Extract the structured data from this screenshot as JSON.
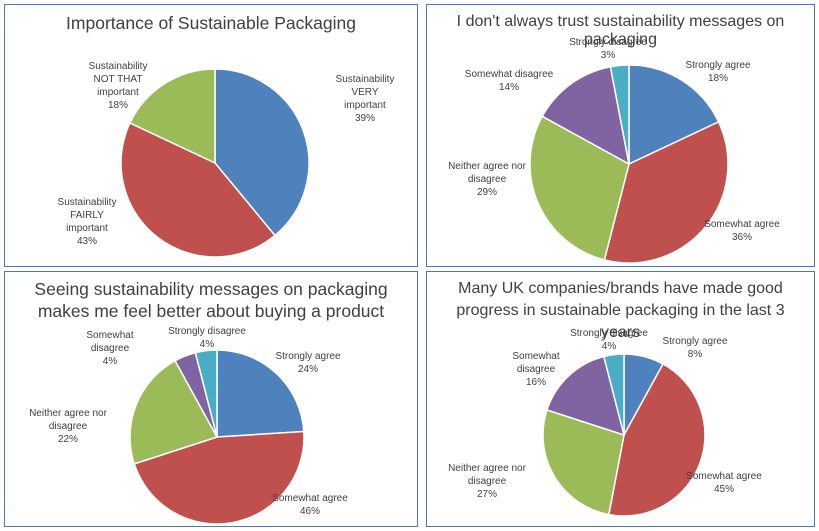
{
  "chart_data": [
    {
      "type": "pie",
      "title": "Importance of Sustainable Packaging",
      "categories": [
        "Sustainability VERY important",
        "Sustainability FAIRLY important",
        "Sustainability NOT THAT important"
      ],
      "values": [
        39,
        43,
        18
      ],
      "labels": [
        {
          "lines": [
            "Sustainability",
            "VERY",
            "important"
          ],
          "value": "39%"
        },
        {
          "lines": [
            "Sustainability",
            "FAIRLY",
            "important"
          ],
          "value": "43%"
        },
        {
          "lines": [
            "Sustainability",
            "NOT THAT",
            "important"
          ],
          "value": "18%"
        }
      ],
      "colors": [
        "#4f81bd",
        "#c0504d",
        "#9bbb59"
      ]
    },
    {
      "type": "pie",
      "title": "I don't always trust sustainability messages on packaging",
      "categories": [
        "Strongly agree",
        "Somewhat agree",
        "Neither agree nor disagree",
        "Somewhat disagree",
        "Strongly disagree"
      ],
      "values": [
        18,
        36,
        29,
        14,
        3
      ],
      "labels": [
        {
          "lines": [
            "Strongly agree"
          ],
          "value": "18%"
        },
        {
          "lines": [
            "Somewhat agree"
          ],
          "value": "36%"
        },
        {
          "lines": [
            "Neither agree nor",
            "disagree"
          ],
          "value": "29%"
        },
        {
          "lines": [
            "Somewhat disagree"
          ],
          "value": "14%"
        },
        {
          "lines": [
            "Strongly disagree"
          ],
          "value": "3%"
        }
      ],
      "colors": [
        "#4f81bd",
        "#c0504d",
        "#9bbb59",
        "#8064a2",
        "#4bacc6"
      ]
    },
    {
      "type": "pie",
      "title": "Seeing sustainability messages on packaging makes me feel better about buying a product",
      "categories": [
        "Strongly agree",
        "Somewhat agree",
        "Neither agree nor disagree",
        "Somewhat disagree",
        "Strongly disagree"
      ],
      "values": [
        24,
        46,
        22,
        4,
        4
      ],
      "labels": [
        {
          "lines": [
            "Strongly agree"
          ],
          "value": "24%"
        },
        {
          "lines": [
            "Somewhat agree"
          ],
          "value": "46%"
        },
        {
          "lines": [
            "Neither agree nor",
            "disagree"
          ],
          "value": "22%"
        },
        {
          "lines": [
            "Somewhat",
            "disagree"
          ],
          "value": "4%"
        },
        {
          "lines": [
            "Strongly disagree"
          ],
          "value": "4%"
        }
      ],
      "colors": [
        "#4f81bd",
        "#c0504d",
        "#9bbb59",
        "#8064a2",
        "#4bacc6"
      ]
    },
    {
      "type": "pie",
      "title": "Many UK companies/brands have made good progress in sustainable packaging in the last 3 years",
      "categories": [
        "Strongly agree",
        "Somewhat agree",
        "Neither agree nor disagree",
        "Somewhat disagree",
        "Strongly disagree"
      ],
      "values": [
        8,
        45,
        27,
        16,
        4
      ],
      "labels": [
        {
          "lines": [
            "Strongly agree"
          ],
          "value": "8%"
        },
        {
          "lines": [
            "Somewhat agree"
          ],
          "value": "45%"
        },
        {
          "lines": [
            "Neither agree nor",
            "disagree"
          ],
          "value": "27%"
        },
        {
          "lines": [
            "Somewhat",
            "disagree"
          ],
          "value": "16%"
        },
        {
          "lines": [
            "Strongly disagree"
          ],
          "value": "4%"
        }
      ],
      "colors": [
        "#4f81bd",
        "#c0504d",
        "#9bbb59",
        "#8064a2",
        "#4bacc6"
      ]
    }
  ]
}
